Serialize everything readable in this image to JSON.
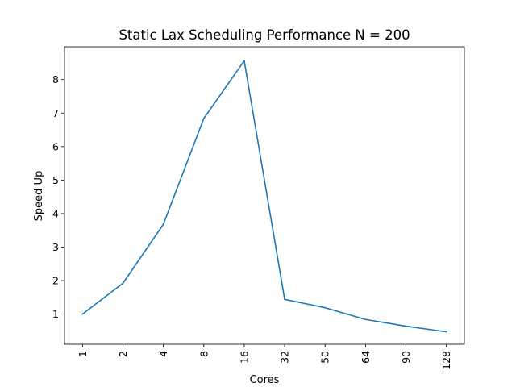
{
  "chart_data": {
    "type": "line",
    "title": "Static Lax Scheduling Performance N = 200",
    "xlabel": "Cores",
    "ylabel": "Speed Up",
    "categories": [
      "1",
      "2",
      "4",
      "8",
      "16",
      "32",
      "50",
      "64",
      "90",
      "128"
    ],
    "series": [
      {
        "values": [
          1.0,
          1.92,
          3.68,
          6.84,
          8.56,
          1.44,
          1.19,
          0.84,
          0.64,
          0.47
        ],
        "color": "#1f77b4"
      }
    ],
    "yticks": [
      1,
      2,
      3,
      4,
      5,
      6,
      7,
      8
    ],
    "ylim": [
      0.1,
      8.98
    ],
    "grid": false,
    "legend": "none"
  }
}
